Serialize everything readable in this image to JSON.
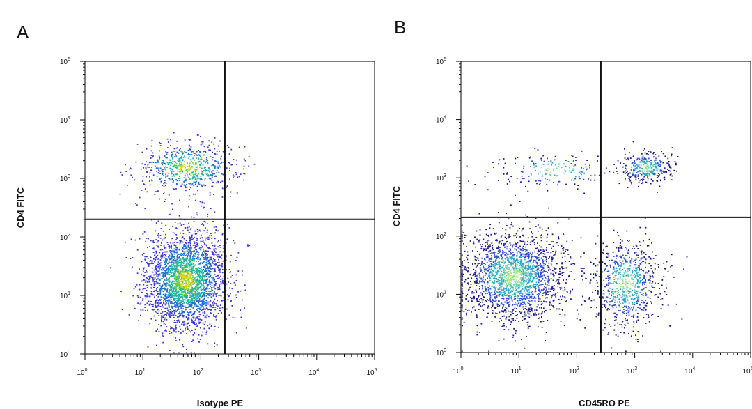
{
  "chart_data": [
    {
      "type": "scatter",
      "panel_label": "A",
      "xlabel": "Isotype PE",
      "ylabel": "CD4 FITC",
      "x_scale": "log",
      "y_scale": "log",
      "xlim": [
        1,
        100000
      ],
      "ylim": [
        1,
        100000
      ],
      "x_tick_labels": [
        {
          "base": "10",
          "exp": "0"
        },
        {
          "base": "10",
          "exp": "1"
        },
        {
          "base": "10",
          "exp": "2"
        },
        {
          "base": "10",
          "exp": "3"
        },
        {
          "base": "10",
          "exp": "4"
        },
        {
          "base": "10",
          "exp": "5"
        }
      ],
      "y_tick_labels": [
        {
          "base": "10",
          "exp": "0"
        },
        {
          "base": "10",
          "exp": "1"
        },
        {
          "base": "10",
          "exp": "2"
        },
        {
          "base": "10",
          "exp": "3"
        },
        {
          "base": "10",
          "exp": "4"
        },
        {
          "base": "10",
          "exp": "5"
        }
      ],
      "quadrant_gate": {
        "x": 260,
        "y": 200
      },
      "populations": [
        {
          "name": "CD4+",
          "x_center": 60,
          "y_center": 1500,
          "x_spread_decades": 0.45,
          "y_spread_decades": 0.22,
          "count": 650
        },
        {
          "name": "CD4-",
          "x_center": 55,
          "y_center": 18,
          "x_spread_decades": 0.35,
          "y_spread_decades": 0.42,
          "count": 2800
        }
      ],
      "density_colors": [
        "#3b3bd6",
        "#1e6fd0",
        "#22b3a0",
        "#6bd23c",
        "#e6d21e"
      ],
      "grid": false,
      "legend": "none"
    },
    {
      "type": "scatter",
      "panel_label": "B",
      "xlabel": "CD45RO PE",
      "ylabel": "CD4 FITC",
      "x_scale": "log",
      "y_scale": "log",
      "xlim": [
        1,
        100000
      ],
      "ylim": [
        1,
        100000
      ],
      "x_tick_labels": [
        {
          "base": "10",
          "exp": "0"
        },
        {
          "base": "10",
          "exp": "1"
        },
        {
          "base": "10",
          "exp": "2"
        },
        {
          "base": "10",
          "exp": "3"
        },
        {
          "base": "10",
          "exp": "4"
        },
        {
          "base": "10",
          "exp": "5"
        }
      ],
      "y_tick_labels": [
        {
          "base": "10",
          "exp": "0"
        },
        {
          "base": "10",
          "exp": "1"
        },
        {
          "base": "10",
          "exp": "2"
        },
        {
          "base": "10",
          "exp": "3"
        },
        {
          "base": "10",
          "exp": "4"
        },
        {
          "base": "10",
          "exp": "5"
        }
      ],
      "quadrant_gate": {
        "x": 260,
        "y": 210
      },
      "populations": [
        {
          "name": "CD4+ CD45RO+",
          "x_center": 1600,
          "y_center": 1500,
          "x_spread_decades": 0.22,
          "y_spread_decades": 0.14,
          "count": 320
        },
        {
          "name": "CD4+ CD45RO-",
          "x_center": 40,
          "y_center": 1300,
          "x_spread_decades": 0.55,
          "y_spread_decades": 0.15,
          "count": 170
        },
        {
          "name": "CD4- CD45RO-",
          "x_center": 8,
          "y_center": 20,
          "x_spread_decades": 0.45,
          "y_spread_decades": 0.38,
          "count": 2100
        },
        {
          "name": "CD4- CD45RO+",
          "x_center": 700,
          "y_center": 15,
          "x_spread_decades": 0.3,
          "y_spread_decades": 0.4,
          "count": 800
        }
      ],
      "density_colors": [
        "#1c1c8c",
        "#2d4fd0",
        "#2fa8c4",
        "#7fd8b0",
        "#b8f070"
      ],
      "grid": false,
      "legend": "none"
    }
  ]
}
